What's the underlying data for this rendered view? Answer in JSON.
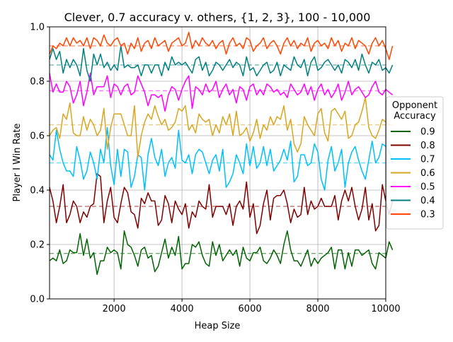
{
  "chart_data": {
    "type": "line",
    "title": "Clever, 0.7 accuracy v. others, {1, 2, 3}, 100 - 10,000",
    "xlabel": "Heap Size",
    "ylabel": "Player I Win Rate",
    "xlim": [
      100,
      10000
    ],
    "ylim": [
      0.0,
      1.0
    ],
    "xticks": [
      2000,
      4000,
      6000,
      8000,
      10000
    ],
    "xtick_labels": [
      "2000",
      "4000",
      "6000",
      "8000",
      "10000"
    ],
    "yticks": [
      0.0,
      0.2,
      0.4,
      0.6,
      0.8,
      1.0
    ],
    "ytick_labels": [
      "0.0",
      "0.2",
      "0.4",
      "0.6",
      "0.8",
      "1.0"
    ],
    "grid": true,
    "legend": {
      "title_line1": "Opponent",
      "title_line2": "Accuracy",
      "placement": "right"
    },
    "x_start": 100,
    "x_step": 100,
    "series": [
      {
        "name": "0.9",
        "color": "#006400",
        "mean": 0.167,
        "values": [
          0.14,
          0.15,
          0.14,
          0.18,
          0.13,
          0.14,
          0.18,
          0.17,
          0.17,
          0.24,
          0.16,
          0.22,
          0.15,
          0.17,
          0.09,
          0.14,
          0.14,
          0.19,
          0.17,
          0.18,
          0.17,
          0.11,
          0.25,
          0.2,
          0.19,
          0.16,
          0.12,
          0.18,
          0.19,
          0.15,
          0.16,
          0.1,
          0.12,
          0.17,
          0.22,
          0.15,
          0.19,
          0.16,
          0.23,
          0.11,
          0.13,
          0.13,
          0.2,
          0.19,
          0.21,
          0.16,
          0.13,
          0.12,
          0.21,
          0.16,
          0.2,
          0.14,
          0.16,
          0.18,
          0.16,
          0.18,
          0.12,
          0.19,
          0.15,
          0.14,
          0.17,
          0.17,
          0.19,
          0.14,
          0.13,
          0.15,
          0.18,
          0.16,
          0.13,
          0.2,
          0.25,
          0.18,
          0.14,
          0.14,
          0.12,
          0.15,
          0.18,
          0.12,
          0.15,
          0.13,
          0.15,
          0.16,
          0.17,
          0.19,
          0.11,
          0.18,
          0.18,
          0.11,
          0.17,
          0.12,
          0.18,
          0.18,
          0.16,
          0.17,
          0.18,
          0.13,
          0.11,
          0.17,
          0.16,
          0.15,
          0.21,
          0.18
        ]
      },
      {
        "name": "0.8",
        "color": "#800000",
        "mean": 0.34,
        "values": [
          0.41,
          0.36,
          0.28,
          0.34,
          0.42,
          0.28,
          0.31,
          0.36,
          0.34,
          0.28,
          0.32,
          0.3,
          0.34,
          0.35,
          0.46,
          0.45,
          0.28,
          0.36,
          0.41,
          0.3,
          0.28,
          0.35,
          0.41,
          0.39,
          0.32,
          0.31,
          0.26,
          0.37,
          0.35,
          0.39,
          0.36,
          0.36,
          0.27,
          0.29,
          0.38,
          0.35,
          0.28,
          0.36,
          0.33,
          0.31,
          0.35,
          0.26,
          0.32,
          0.3,
          0.36,
          0.34,
          0.33,
          0.42,
          0.3,
          0.34,
          0.34,
          0.34,
          0.31,
          0.35,
          0.27,
          0.34,
          0.36,
          0.33,
          0.43,
          0.3,
          0.35,
          0.24,
          0.27,
          0.35,
          0.4,
          0.29,
          0.37,
          0.38,
          0.38,
          0.4,
          0.35,
          0.28,
          0.33,
          0.3,
          0.31,
          0.41,
          0.31,
          0.36,
          0.33,
          0.34,
          0.37,
          0.34,
          0.34,
          0.34,
          0.38,
          0.29,
          0.36,
          0.4,
          0.36,
          0.41,
          0.34,
          0.29,
          0.33,
          0.41,
          0.29,
          0.35,
          0.25,
          0.27,
          0.42,
          0.36,
          0.31,
          0.36
        ]
      },
      {
        "name": "0.7",
        "color": "#00BFFF",
        "mean": 0.5,
        "values": [
          0.53,
          0.51,
          0.62,
          0.55,
          0.5,
          0.47,
          0.47,
          0.45,
          0.56,
          0.51,
          0.44,
          0.47,
          0.54,
          0.5,
          0.44,
          0.55,
          0.5,
          0.63,
          0.49,
          0.42,
          0.55,
          0.45,
          0.55,
          0.54,
          0.41,
          0.45,
          0.53,
          0.52,
          0.4,
          0.53,
          0.59,
          0.52,
          0.49,
          0.55,
          0.45,
          0.5,
          0.52,
          0.48,
          0.62,
          0.51,
          0.5,
          0.53,
          0.46,
          0.53,
          0.55,
          0.54,
          0.5,
          0.46,
          0.51,
          0.53,
          0.47,
          0.55,
          0.41,
          0.43,
          0.46,
          0.53,
          0.5,
          0.46,
          0.57,
          0.49,
          0.56,
          0.48,
          0.5,
          0.56,
          0.49,
          0.55,
          0.47,
          0.49,
          0.51,
          0.55,
          0.51,
          0.58,
          0.43,
          0.45,
          0.53,
          0.53,
          0.49,
          0.5,
          0.57,
          0.54,
          0.44,
          0.4,
          0.51,
          0.56,
          0.47,
          0.5,
          0.55,
          0.41,
          0.5,
          0.54,
          0.56,
          0.51,
          0.47,
          0.44,
          0.51,
          0.58,
          0.5,
          0.52,
          0.57,
          0.56,
          0.54,
          0.5
        ]
      },
      {
        "name": "0.6",
        "color": "#DAA520",
        "mean": 0.64,
        "values": [
          0.6,
          0.62,
          0.63,
          0.59,
          0.68,
          0.66,
          0.72,
          0.61,
          0.6,
          0.6,
          0.67,
          0.62,
          0.66,
          0.64,
          0.6,
          0.62,
          0.7,
          0.55,
          0.63,
          0.68,
          0.68,
          0.68,
          0.64,
          0.6,
          0.6,
          0.71,
          0.52,
          0.6,
          0.65,
          0.68,
          0.66,
          0.71,
          0.67,
          0.64,
          0.66,
          0.62,
          0.63,
          0.65,
          0.7,
          0.69,
          0.71,
          0.62,
          0.64,
          0.61,
          0.68,
          0.66,
          0.65,
          0.66,
          0.6,
          0.64,
          0.61,
          0.67,
          0.64,
          0.68,
          0.6,
          0.69,
          0.6,
          0.61,
          0.63,
          0.58,
          0.61,
          0.66,
          0.59,
          0.64,
          0.62,
          0.67,
          0.64,
          0.67,
          0.66,
          0.71,
          0.62,
          0.66,
          0.57,
          0.54,
          0.57,
          0.67,
          0.64,
          0.62,
          0.6,
          0.68,
          0.7,
          0.61,
          0.58,
          0.69,
          0.7,
          0.68,
          0.66,
          0.69,
          0.59,
          0.6,
          0.64,
          0.65,
          0.69,
          0.74,
          0.63,
          0.6,
          0.59,
          0.62,
          0.66,
          0.65,
          0.64,
          0.64
        ]
      },
      {
        "name": "0.5",
        "color": "#FF00FF",
        "mean": 0.765,
        "values": [
          0.83,
          0.76,
          0.79,
          0.76,
          0.76,
          0.8,
          0.78,
          0.72,
          0.75,
          0.8,
          0.71,
          0.76,
          0.83,
          0.75,
          0.78,
          0.78,
          0.78,
          0.82,
          0.74,
          0.79,
          0.78,
          0.75,
          0.78,
          0.79,
          0.75,
          0.76,
          0.82,
          0.79,
          0.76,
          0.71,
          0.75,
          0.75,
          0.74,
          0.75,
          0.69,
          0.75,
          0.78,
          0.77,
          0.73,
          0.77,
          0.8,
          0.82,
          0.7,
          0.78,
          0.77,
          0.75,
          0.79,
          0.76,
          0.77,
          0.8,
          0.74,
          0.77,
          0.79,
          0.75,
          0.77,
          0.72,
          0.78,
          0.77,
          0.73,
          0.78,
          0.79,
          0.75,
          0.77,
          0.75,
          0.79,
          0.78,
          0.76,
          0.77,
          0.75,
          0.76,
          0.74,
          0.79,
          0.77,
          0.75,
          0.76,
          0.79,
          0.75,
          0.78,
          0.73,
          0.77,
          0.79,
          0.75,
          0.77,
          0.74,
          0.76,
          0.79,
          0.73,
          0.76,
          0.8,
          0.75,
          0.77,
          0.78,
          0.76,
          0.74,
          0.75,
          0.78,
          0.8,
          0.76,
          0.75,
          0.77,
          0.76,
          0.75
        ]
      },
      {
        "name": "0.4",
        "color": "#008080",
        "mean": 0.86,
        "values": [
          0.88,
          0.92,
          0.88,
          0.91,
          0.83,
          0.88,
          0.85,
          0.88,
          0.86,
          0.82,
          0.92,
          0.84,
          0.8,
          0.9,
          0.86,
          0.9,
          0.85,
          0.87,
          0.84,
          0.86,
          0.84,
          0.93,
          0.85,
          0.86,
          0.85,
          0.85,
          0.86,
          0.82,
          0.86,
          0.86,
          0.83,
          0.86,
          0.86,
          0.82,
          0.87,
          0.84,
          0.89,
          0.86,
          0.87,
          0.86,
          0.87,
          0.85,
          0.83,
          0.88,
          0.89,
          0.84,
          0.87,
          0.82,
          0.84,
          0.87,
          0.86,
          0.84,
          0.86,
          0.88,
          0.85,
          0.87,
          0.86,
          0.82,
          0.89,
          0.84,
          0.85,
          0.82,
          0.84,
          0.86,
          0.87,
          0.83,
          0.84,
          0.87,
          0.82,
          0.86,
          0.85,
          0.84,
          0.89,
          0.86,
          0.85,
          0.88,
          0.82,
          0.87,
          0.89,
          0.84,
          0.85,
          0.87,
          0.88,
          0.86,
          0.84,
          0.86,
          0.83,
          0.88,
          0.87,
          0.85,
          0.88,
          0.84,
          0.9,
          0.86,
          0.83,
          0.87,
          0.86,
          0.88,
          0.84,
          0.85,
          0.83,
          0.86
        ]
      },
      {
        "name": "0.3",
        "color": "#FF4500",
        "mean": 0.93,
        "values": [
          0.9,
          0.93,
          0.92,
          0.94,
          0.93,
          0.96,
          0.93,
          0.96,
          0.94,
          0.95,
          0.93,
          0.96,
          0.92,
          0.96,
          0.95,
          0.93,
          0.97,
          0.94,
          0.93,
          0.95,
          0.96,
          0.93,
          0.94,
          0.9,
          0.94,
          0.92,
          0.96,
          0.91,
          0.94,
          0.95,
          0.92,
          0.96,
          0.93,
          0.94,
          0.95,
          0.91,
          0.94,
          0.95,
          0.96,
          0.93,
          0.94,
          0.98,
          0.92,
          0.95,
          0.93,
          0.96,
          0.94,
          0.93,
          0.95,
          0.92,
          0.94,
          0.95,
          0.9,
          0.94,
          0.96,
          0.93,
          0.94,
          0.92,
          0.96,
          0.95,
          0.91,
          0.93,
          0.94,
          0.96,
          0.92,
          0.94,
          0.95,
          0.93,
          0.9,
          0.94,
          0.96,
          0.93,
          0.95,
          0.92,
          0.94,
          0.93,
          0.96,
          0.91,
          0.94,
          0.95,
          0.93,
          0.94,
          0.92,
          0.96,
          0.93,
          0.95,
          0.91,
          0.94,
          0.93,
          0.96,
          0.92,
          0.95,
          0.94,
          0.93,
          0.9,
          0.94,
          0.96,
          0.93,
          0.95,
          0.92,
          0.88,
          0.93
        ]
      }
    ]
  }
}
